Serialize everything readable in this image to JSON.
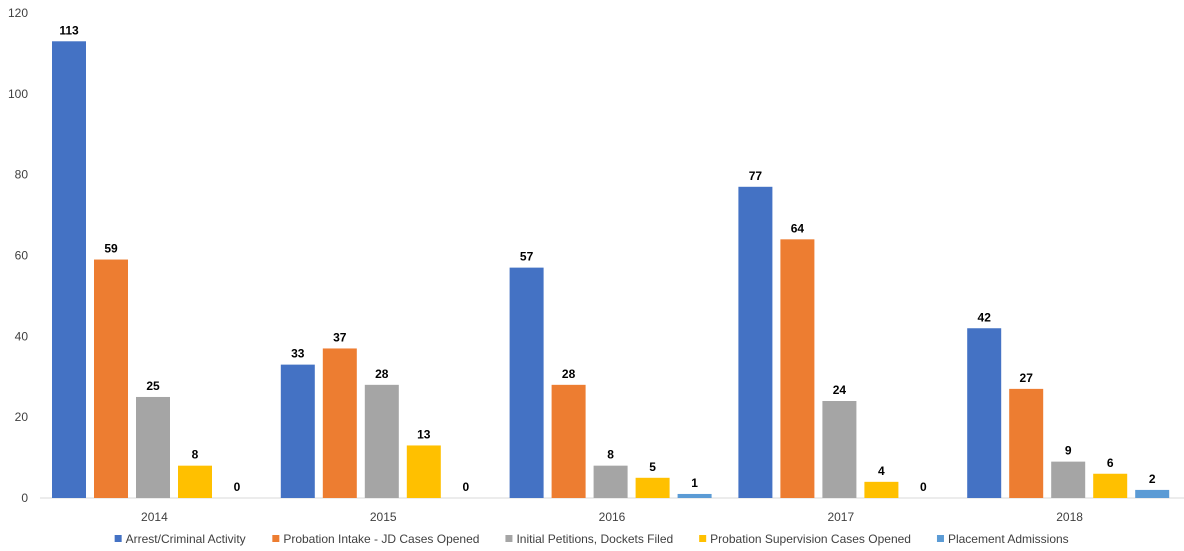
{
  "chart_data": {
    "type": "bar",
    "categories": [
      "2014",
      "2015",
      "2016",
      "2017",
      "2018"
    ],
    "series": [
      {
        "name": "Arrest/Criminal Activity",
        "color": "#4472C4",
        "values": [
          113,
          33,
          57,
          77,
          42
        ]
      },
      {
        "name": "Probation Intake - JD Cases Opened",
        "color": "#ED7D31",
        "values": [
          59,
          37,
          28,
          64,
          27
        ]
      },
      {
        "name": "Initial Petitions, Dockets Filed",
        "color": "#A5A5A5",
        "values": [
          25,
          28,
          8,
          24,
          9
        ]
      },
      {
        "name": "Probation Supervision Cases Opened",
        "color": "#FFC000",
        "values": [
          8,
          13,
          5,
          4,
          6
        ]
      },
      {
        "name": "Placement Admissions",
        "color": "#5B9BD5",
        "values": [
          0,
          0,
          1,
          0,
          2
        ]
      }
    ],
    "ylim": [
      0,
      120
    ],
    "yticks": [
      0,
      20,
      40,
      60,
      80,
      100,
      120
    ],
    "data_labels": true,
    "grid": false,
    "legend_position": "bottom"
  }
}
